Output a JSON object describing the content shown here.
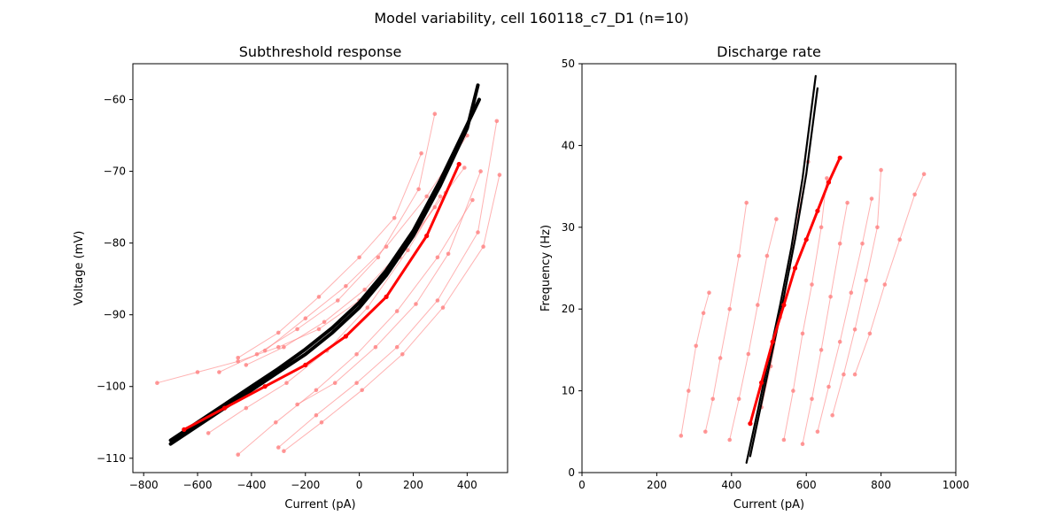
{
  "figure": {
    "suptitle": "Model variability, cell 160118_c7_D1 (n=10)"
  },
  "colors": {
    "experiment": "#ff0000",
    "experiment_faint": "#ff7f7f",
    "model": "#000000"
  },
  "chart_data": [
    {
      "type": "line",
      "title": "Subthreshold response",
      "xlabel": "Current (pA)",
      "ylabel": "Voltage (mV)",
      "xlim": [
        -840,
        550
      ],
      "ylim": [
        -112,
        -55
      ],
      "xticks": [
        -800,
        -600,
        -400,
        -200,
        0,
        200,
        400
      ],
      "yticks": [
        -110,
        -100,
        -90,
        -80,
        -70,
        -60
      ],
      "grid": false,
      "series": [
        {
          "role": "experiment-mean",
          "x": [
            -650,
            -500,
            -350,
            -200,
            -50,
            100,
            250,
            370
          ],
          "y": [
            -106,
            -103,
            -100,
            -97,
            -93,
            -87.5,
            -79,
            -69
          ]
        },
        {
          "role": "experiment-trace",
          "x": [
            -750,
            -600,
            -450,
            -300,
            -150,
            0,
            150,
            280
          ],
          "y": [
            -99.5,
            -98,
            -96.5,
            -94.5,
            -92,
            -88,
            -82,
            -75
          ]
        },
        {
          "role": "experiment-trace",
          "x": [
            -520,
            -380,
            -230,
            -80,
            70,
            220,
            280
          ],
          "y": [
            -98,
            -95.5,
            -92,
            -88,
            -82,
            -72.5,
            -62
          ]
        },
        {
          "role": "experiment-trace",
          "x": [
            -420,
            -280,
            -130,
            20,
            170,
            320,
            390
          ],
          "y": [
            -97,
            -94.5,
            -91,
            -86.5,
            -80.5,
            -73,
            -69.5
          ]
        },
        {
          "role": "experiment-trace",
          "x": [
            -560,
            -420,
            -270,
            -120,
            30,
            180,
            300
          ],
          "y": [
            -106.5,
            -103,
            -99.5,
            -95,
            -89,
            -81,
            -73.5
          ]
        },
        {
          "role": "experiment-trace",
          "x": [
            -450,
            -310,
            -160,
            -10,
            140,
            290,
            420
          ],
          "y": [
            -109.5,
            -105,
            -100.5,
            -95.5,
            -89.5,
            -82,
            -74
          ]
        },
        {
          "role": "experiment-trace",
          "x": [
            -300,
            -160,
            -10,
            140,
            290,
            440,
            510
          ],
          "y": [
            -108.5,
            -104,
            -99.5,
            -94.5,
            -88,
            -78.5,
            -63
          ]
        },
        {
          "role": "experiment-trace",
          "x": [
            -280,
            -140,
            10,
            160,
            310,
            460,
            520
          ],
          "y": [
            -109,
            -105,
            -100.5,
            -95.5,
            -89,
            -80.5,
            -70.5
          ]
        },
        {
          "role": "experiment-trace",
          "x": [
            -350,
            -200,
            -50,
            100,
            250,
            400
          ],
          "y": [
            -95,
            -90.5,
            -86,
            -80.5,
            -73.5,
            -65
          ]
        },
        {
          "role": "experiment-trace",
          "x": [
            -230,
            -90,
            60,
            210,
            330,
            450
          ],
          "y": [
            -102.5,
            -99.5,
            -94.5,
            -88.5,
            -81.5,
            -70
          ]
        },
        {
          "role": "experiment-trace",
          "x": [
            -450,
            -300,
            -150,
            0,
            130,
            230
          ],
          "y": [
            -96,
            -92.5,
            -87.5,
            -82,
            -76.5,
            -67.5
          ]
        },
        {
          "role": "model",
          "x": [
            -700,
            -600,
            -500,
            -400,
            -300,
            -200,
            -100,
            0,
            100,
            200,
            300,
            400,
            440
          ],
          "y": [
            -108,
            -105.5,
            -103,
            -100.5,
            -98,
            -95.5,
            -92.5,
            -89,
            -84.5,
            -79,
            -72,
            -64,
            -58
          ]
        },
        {
          "role": "model",
          "x": [
            -700,
            -600,
            -500,
            -400,
            -300,
            -200,
            -100,
            0,
            100,
            200,
            300,
            400,
            445
          ],
          "y": [
            -107.5,
            -105,
            -102.5,
            -100,
            -97.5,
            -94.8,
            -91.8,
            -88.3,
            -83.8,
            -78.3,
            -71.3,
            -63.5,
            -60
          ]
        }
      ]
    },
    {
      "type": "scatter",
      "title": "Discharge rate",
      "xlabel": "Current (pA)",
      "ylabel": "Frequency (Hz)",
      "xlim": [
        0,
        1000
      ],
      "ylim": [
        0,
        50
      ],
      "xticks": [
        0,
        200,
        400,
        600,
        800,
        1000
      ],
      "yticks": [
        0,
        10,
        20,
        30,
        40,
        50
      ],
      "grid": false,
      "series": [
        {
          "role": "experiment-mean",
          "x": [
            450,
            480,
            510,
            540,
            570,
            600,
            630,
            660,
            690
          ],
          "y": [
            6,
            11,
            16,
            20.5,
            25,
            28.5,
            32,
            35.5,
            38.5
          ]
        },
        {
          "role": "experiment-trace",
          "x": [
            265,
            285,
            305,
            325,
            340
          ],
          "y": [
            4.5,
            10,
            15.5,
            19.5,
            22
          ]
        },
        {
          "role": "experiment-trace",
          "x": [
            330,
            350,
            370,
            395,
            420,
            440
          ],
          "y": [
            5,
            9,
            14,
            20,
            26.5,
            33
          ]
        },
        {
          "role": "experiment-trace",
          "x": [
            395,
            420,
            445,
            470,
            495,
            520
          ],
          "y": [
            4,
            9,
            14.5,
            20.5,
            26.5,
            31
          ]
        },
        {
          "role": "experiment-trace",
          "x": [
            540,
            565,
            590,
            615,
            640,
            655
          ],
          "y": [
            4,
            10,
            17,
            23,
            30,
            36
          ]
        },
        {
          "role": "experiment-trace",
          "x": [
            590,
            615,
            640,
            665,
            690,
            710
          ],
          "y": [
            3.5,
            9,
            15,
            21.5,
            28,
            33
          ]
        },
        {
          "role": "experiment-trace",
          "x": [
            630,
            660,
            690,
            720,
            750,
            775
          ],
          "y": [
            5,
            10.5,
            16,
            22,
            28,
            33.5
          ]
        },
        {
          "role": "experiment-trace",
          "x": [
            670,
            700,
            730,
            760,
            790,
            800
          ],
          "y": [
            7,
            12,
            17.5,
            23.5,
            30,
            37
          ]
        },
        {
          "role": "experiment-trace",
          "x": [
            730,
            770,
            810,
            850,
            890,
            915
          ],
          "y": [
            12,
            17,
            23,
            28.5,
            34,
            36.5
          ]
        },
        {
          "role": "experiment-trace",
          "x": [
            480,
            505,
            530,
            555,
            580,
            605
          ],
          "y": [
            8,
            13,
            19,
            25,
            32,
            38
          ]
        },
        {
          "role": "model",
          "x": [
            440,
            470,
            500,
            530,
            560,
            590,
            625
          ],
          "y": [
            1.2,
            7.5,
            14,
            20.5,
            27.5,
            36,
            48.5
          ]
        },
        {
          "role": "model",
          "x": [
            450,
            480,
            510,
            540,
            570,
            600,
            630
          ],
          "y": [
            2,
            8.5,
            15,
            21.5,
            28.5,
            36.5,
            47
          ]
        }
      ]
    }
  ]
}
